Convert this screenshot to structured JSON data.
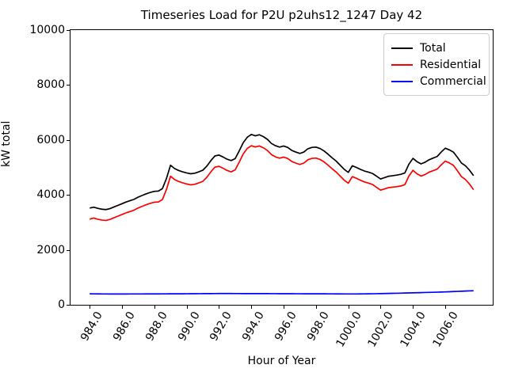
{
  "title": "Timeseries Load for P2U p2uhs12_1247  Day 42",
  "xlabel": "Hour of Year",
  "ylabel": "kW total",
  "legend": {
    "entries": [
      {
        "label": "Total",
        "color": "#000000"
      },
      {
        "label": "Residential",
        "color": "#ff0000"
      },
      {
        "label": "Commercial",
        "color": "#0000ff"
      }
    ]
  },
  "chart_data": {
    "type": "line",
    "title": "Timeseries Load for P2U p2uhs12_1247  Day 42",
    "xlabel": "Hour of Year",
    "ylabel": "kW total",
    "xlim": [
      982.8125,
      1008.9375
    ],
    "ylim": [
      0,
      10000
    ],
    "grid": false,
    "legend_position": "upper right",
    "xticks": {
      "values": [
        984,
        986,
        988,
        990,
        992,
        994,
        996,
        998,
        1000,
        1002,
        1004,
        1006
      ],
      "labels": [
        "984.0",
        "986.0",
        "988.0",
        "990.0",
        "992.0",
        "994.0",
        "996.0",
        "998.0",
        "1000.0",
        "1002.0",
        "1004.0",
        "1006.0"
      ]
    },
    "yticks": {
      "values": [
        0,
        2000,
        4000,
        6000,
        8000,
        10000
      ],
      "labels": [
        "0",
        "2000",
        "4000",
        "6000",
        "8000",
        "10000"
      ]
    },
    "x": {
      "start": 984.0,
      "step": 0.25,
      "count": 96
    },
    "series": [
      {
        "name": "Total",
        "color": "#000000",
        "values": [
          3520,
          3555,
          3510,
          3480,
          3465,
          3500,
          3560,
          3620,
          3680,
          3740,
          3790,
          3840,
          3920,
          3980,
          4040,
          4090,
          4130,
          4140,
          4230,
          4600,
          5080,
          4960,
          4890,
          4840,
          4800,
          4770,
          4790,
          4840,
          4900,
          5050,
          5250,
          5420,
          5450,
          5380,
          5300,
          5250,
          5320,
          5600,
          5900,
          6100,
          6200,
          6150,
          6190,
          6120,
          6020,
          5870,
          5790,
          5740,
          5780,
          5730,
          5620,
          5560,
          5510,
          5560,
          5680,
          5730,
          5740,
          5690,
          5600,
          5480,
          5350,
          5230,
          5080,
          4930,
          4820,
          5060,
          5000,
          4930,
          4870,
          4830,
          4780,
          4680,
          4580,
          4630,
          4680,
          4700,
          4720,
          4750,
          4800,
          5120,
          5330,
          5210,
          5130,
          5190,
          5280,
          5340,
          5400,
          5560,
          5700,
          5640,
          5560,
          5370,
          5160,
          5060,
          4900,
          4700
        ]
      },
      {
        "name": "Residential",
        "color": "#ff0000",
        "values": [
          3120,
          3157,
          3114,
          3085,
          3071,
          3107,
          3168,
          3228,
          3287,
          3347,
          3396,
          3446,
          3525,
          3585,
          3644,
          3694,
          3733,
          3743,
          3832,
          4202,
          4681,
          4560,
          4490,
          4439,
          4398,
          4367,
          4386,
          4435,
          4494,
          4643,
          4842,
          5011,
          5040,
          4970,
          4890,
          4840,
          4911,
          5191,
          5492,
          5692,
          5792,
          5743,
          5783,
          5714,
          5614,
          5465,
          5385,
          5336,
          5376,
          5327,
          5217,
          5158,
          5108,
          5159,
          5279,
          5330,
          5340,
          5291,
          5201,
          5082,
          4952,
          4833,
          4684,
          4535,
          4426,
          4666,
          4605,
          4534,
          4472,
          4430,
          4378,
          4275,
          4172,
          4219,
          4266,
          4283,
          4300,
          4326,
          4372,
          4688,
          4894,
          4770,
          4686,
          4742,
          4828,
          4884,
          4940,
          5095,
          5230,
          5164,
          5078,
          4882,
          4666,
          4560,
          4394,
          4188
        ]
      },
      {
        "name": "Commercial",
        "color": "#0000ff",
        "values": [
          400,
          398,
          396,
          395,
          394,
          393,
          392,
          392,
          393,
          393,
          394,
          394,
          395,
          395,
          396,
          396,
          397,
          397,
          398,
          398,
          399,
          400,
          400,
          401,
          402,
          403,
          404,
          405,
          406,
          407,
          408,
          409,
          410,
          410,
          410,
          410,
          409,
          409,
          408,
          408,
          408,
          407,
          407,
          406,
          406,
          405,
          405,
          404,
          404,
          403,
          403,
          402,
          402,
          401,
          401,
          400,
          400,
          399,
          399,
          398,
          398,
          397,
          396,
          395,
          394,
          394,
          395,
          396,
          398,
          400,
          402,
          405,
          408,
          411,
          414,
          417,
          420,
          424,
          428,
          432,
          436,
          440,
          444,
          448,
          452,
          456,
          460,
          465,
          470,
          476,
          482,
          488,
          494,
          500,
          506,
          512
        ]
      }
    ]
  }
}
